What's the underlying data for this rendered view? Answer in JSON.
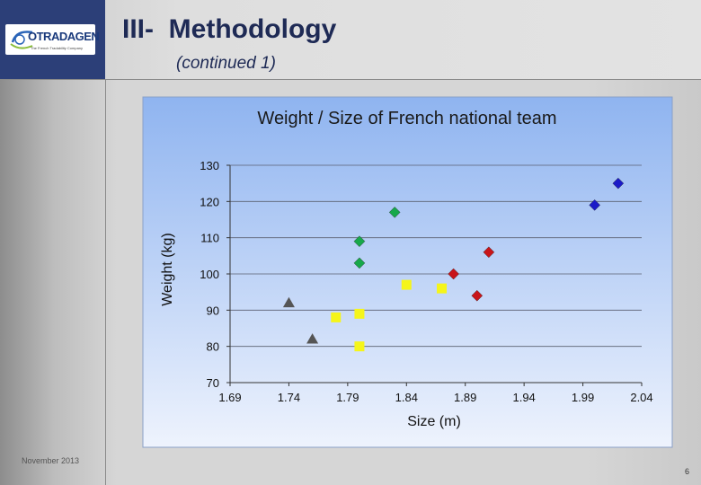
{
  "slide": {
    "title": "III-  Methodology",
    "subtitle": "(continued 1)",
    "footer_date": "November 2013",
    "page_number": "6"
  },
  "logo": {
    "text": "OTRADAGEN",
    "tagline": "The French Tradability Company"
  },
  "colors": {
    "plot_bg_top": "#8fb4f0",
    "plot_bg_bottom": "#eef3fd",
    "blue": "#1b1bc8",
    "green": "#17a84a",
    "red": "#c8151a",
    "yellow": "#f5f51a",
    "gray": "#555555"
  },
  "chart_data": {
    "type": "scatter",
    "title": "Weight / Size of French national team",
    "xlabel": "Size (m)",
    "ylabel": "Weight (kg)",
    "xlim": [
      1.69,
      2.04
    ],
    "ylim": [
      70,
      130
    ],
    "xticks": [
      "1.69",
      "1.74",
      "1.79",
      "1.84",
      "1.89",
      "1.94",
      "1.99",
      "2.04"
    ],
    "yticks": [
      "70",
      "80",
      "90",
      "100",
      "110",
      "120",
      "130"
    ],
    "grid": true,
    "legend": "none",
    "series": [
      {
        "marker": "triangle",
        "color": "#555555",
        "points": [
          [
            1.74,
            92
          ],
          [
            1.76,
            82
          ]
        ]
      },
      {
        "marker": "square",
        "color": "#f5f51a",
        "points": [
          [
            1.78,
            88
          ],
          [
            1.8,
            89
          ],
          [
            1.8,
            80
          ],
          [
            1.84,
            97
          ],
          [
            1.87,
            96
          ]
        ]
      },
      {
        "marker": "diamond",
        "color": "#17a84a",
        "points": [
          [
            1.8,
            109
          ],
          [
            1.8,
            103
          ],
          [
            1.83,
            117
          ]
        ]
      },
      {
        "marker": "diamond",
        "color": "#c8151a",
        "points": [
          [
            1.88,
            100
          ],
          [
            1.9,
            94
          ],
          [
            1.91,
            106
          ]
        ]
      },
      {
        "marker": "diamond",
        "color": "#1b1bc8",
        "points": [
          [
            2.0,
            119
          ],
          [
            2.02,
            125
          ]
        ]
      }
    ]
  }
}
